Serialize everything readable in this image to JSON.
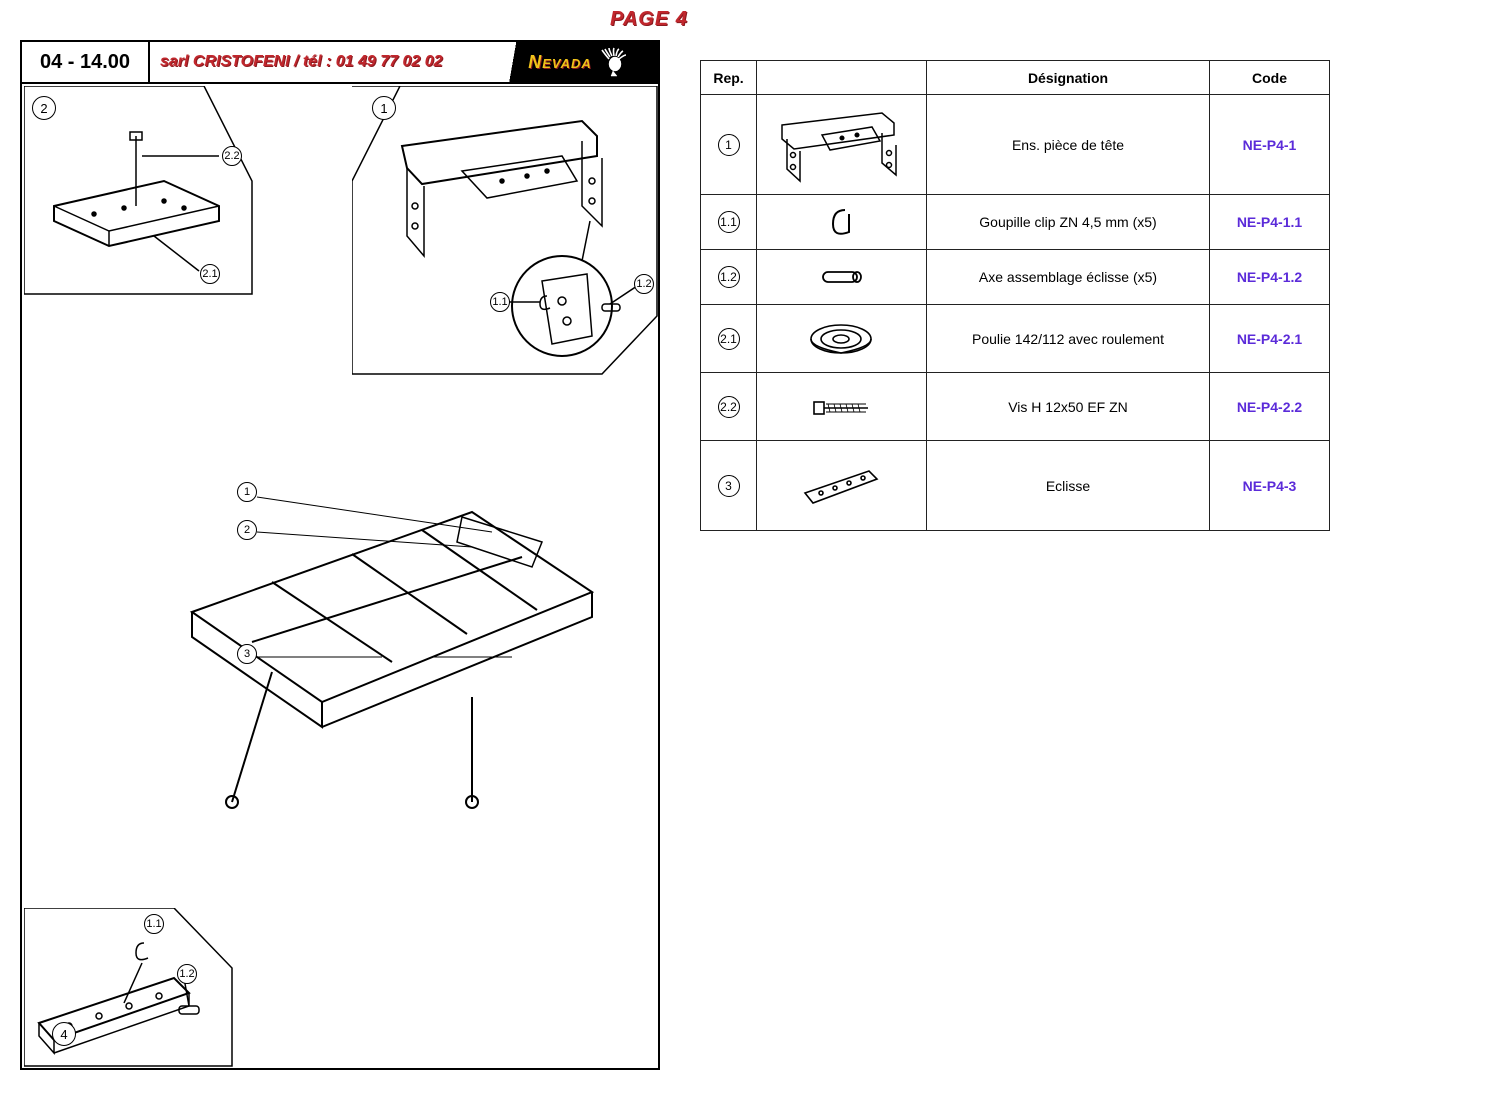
{
  "page": {
    "title": "PAGE 4"
  },
  "header": {
    "code": "04 - 14.00",
    "company": "sarl CRISTOFENI / tél : 01 49 77 02 02",
    "brand": "Nevada"
  },
  "colors": {
    "red": "#c1272d",
    "red_shadow": "#8a1a1f",
    "brand_yellow": "#f0c419",
    "code_link": "#5b2bd9",
    "border": "#000000",
    "table_border": "#222222",
    "background": "#ffffff"
  },
  "diagram": {
    "callouts": {
      "top_left_2": "2",
      "top_left_22": "2.2",
      "top_left_21": "2.1",
      "top_right_1": "1",
      "top_right_11": "1.1",
      "top_right_12": "1.2",
      "mid_1": "1",
      "mid_2": "2",
      "mid_3": "3",
      "bot_11": "1.1",
      "bot_12": "1.2",
      "bot_4": "4"
    }
  },
  "table": {
    "headers": {
      "rep": "Rep.",
      "designation": "Désignation",
      "code": "Code"
    },
    "rows": [
      {
        "rep": "1",
        "designation": "Ens. pièce de tête",
        "code": "NE-P4-1",
        "icon": "head-assembly",
        "row_class": "row-tall"
      },
      {
        "rep": "1.1",
        "designation": "Goupille clip ZN 4,5 mm (x5)",
        "code": "NE-P4-1.1",
        "icon": "clip-pin",
        "row_class": "row-med"
      },
      {
        "rep": "1.2",
        "designation": "Axe assemblage éclisse (x5)",
        "code": "NE-P4-1.2",
        "icon": "axle",
        "row_class": "row-med"
      },
      {
        "rep": "2.1",
        "designation": "Poulie 142/112 avec roulement",
        "code": "NE-P4-2.1",
        "icon": "pulley",
        "row_class": "row-med2"
      },
      {
        "rep": "2.2",
        "designation": "Vis H 12x50 EF ZN",
        "code": "NE-P4-2.2",
        "icon": "bolt",
        "row_class": "row-med2"
      },
      {
        "rep": "3",
        "designation": "Eclisse",
        "code": "NE-P4-3",
        "icon": "splice",
        "row_class": "row-last"
      }
    ]
  }
}
